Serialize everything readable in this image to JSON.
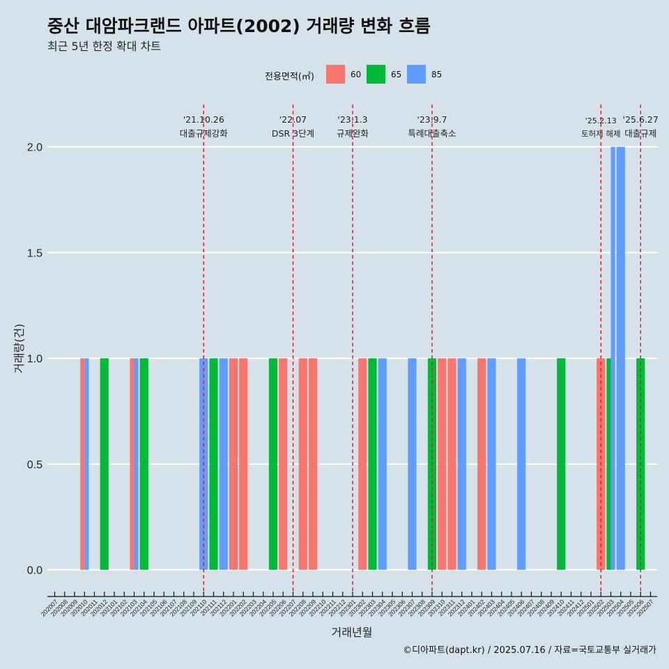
{
  "title": "중산 대암파크랜드 아파트(2002) 거래량 변화 흐름",
  "subtitle": "최근 5년 한정 확대 차트",
  "caption": "©디아파트(dapt.kr) / 2025.07.16 / 자료=국토교통부 실거래가",
  "legend": {
    "title": "전용면적(㎡)",
    "items": [
      {
        "label": "60",
        "color": "#F8766D"
      },
      {
        "label": "65",
        "color": "#00BA38"
      },
      {
        "label": "85",
        "color": "#619CFF"
      }
    ]
  },
  "chart_data": {
    "type": "bar",
    "xlabel": "거래년월",
    "ylabel": "거래량(건)",
    "ylim": [
      -0.1,
      2.2
    ],
    "yticks": [
      0.0,
      0.5,
      1.0,
      1.5,
      2.0
    ],
    "ytick_labels": [
      "0.0",
      "0.5",
      "1.0",
      "1.5",
      "2.0"
    ],
    "categories": [
      "202007",
      "202008",
      "202009",
      "202010",
      "202011",
      "202012",
      "202101",
      "202102",
      "202103",
      "202104",
      "202105",
      "202106",
      "202107",
      "202108",
      "202109",
      "202110",
      "202111",
      "202112",
      "202201",
      "202202",
      "202203",
      "202204",
      "202205",
      "202206",
      "202207",
      "202208",
      "202209",
      "202210",
      "202211",
      "202212",
      "202301",
      "202302",
      "202303",
      "202304",
      "202305",
      "202306",
      "202307",
      "202308",
      "202309",
      "202310",
      "202311",
      "202312",
      "202401",
      "202402",
      "202403",
      "202404",
      "202405",
      "202406",
      "202407",
      "202408",
      "202409",
      "202410",
      "202411",
      "202412",
      "202501",
      "202502",
      "202503",
      "202504",
      "202505",
      "202506",
      "202507"
    ],
    "series": [
      {
        "name": "60",
        "color": "#F8766D",
        "bars": [
          {
            "x": "202010",
            "y": 1
          },
          {
            "x": "202103",
            "y": 1
          },
          {
            "x": "202201",
            "y": 1
          },
          {
            "x": "202202",
            "y": 1
          },
          {
            "x": "202206",
            "y": 1
          },
          {
            "x": "202208",
            "y": 1
          },
          {
            "x": "202209",
            "y": 1
          },
          {
            "x": "202302",
            "y": 1
          },
          {
            "x": "202310",
            "y": 1
          },
          {
            "x": "202311",
            "y": 1
          },
          {
            "x": "202402",
            "y": 1
          },
          {
            "x": "202502",
            "y": 1
          }
        ]
      },
      {
        "name": "65",
        "color": "#00BA38",
        "bars": [
          {
            "x": "202012",
            "y": 1
          },
          {
            "x": "202104",
            "y": 1
          },
          {
            "x": "202111",
            "y": 1
          },
          {
            "x": "202205",
            "y": 1
          },
          {
            "x": "202303",
            "y": 1
          },
          {
            "x": "202309",
            "y": 1
          },
          {
            "x": "202410",
            "y": 1
          },
          {
            "x": "202503",
            "y": 1
          },
          {
            "x": "202506",
            "y": 1
          }
        ]
      },
      {
        "name": "85",
        "color": "#619CFF",
        "bars": [
          {
            "x": "202010",
            "y": 1
          },
          {
            "x": "202103",
            "y": 1
          },
          {
            "x": "202110",
            "y": 1
          },
          {
            "x": "202112",
            "y": 1
          },
          {
            "x": "202304",
            "y": 1
          },
          {
            "x": "202307",
            "y": 1
          },
          {
            "x": "202312",
            "y": 1
          },
          {
            "x": "202403",
            "y": 1
          },
          {
            "x": "202406",
            "y": 1
          },
          {
            "x": "202503",
            "y": 2
          },
          {
            "x": "202504",
            "y": 2
          }
        ]
      }
    ],
    "annotations": [
      {
        "x": "202110",
        "date": "'21.10.26",
        "label": "대출규제강화"
      },
      {
        "x": "202207",
        "date": "'22.07",
        "label": "DSR 3단계"
      },
      {
        "x": "202301",
        "date": "'23.1.3",
        "label": "규제완화"
      },
      {
        "x": "202309",
        "date": "'23.9.7",
        "label": "특례대출축소"
      },
      {
        "x": "202502",
        "date": "'25.2.13",
        "label": "토허제 해제"
      },
      {
        "x": "202506",
        "date": "'25.6.27",
        "label": "대출규제"
      }
    ]
  }
}
